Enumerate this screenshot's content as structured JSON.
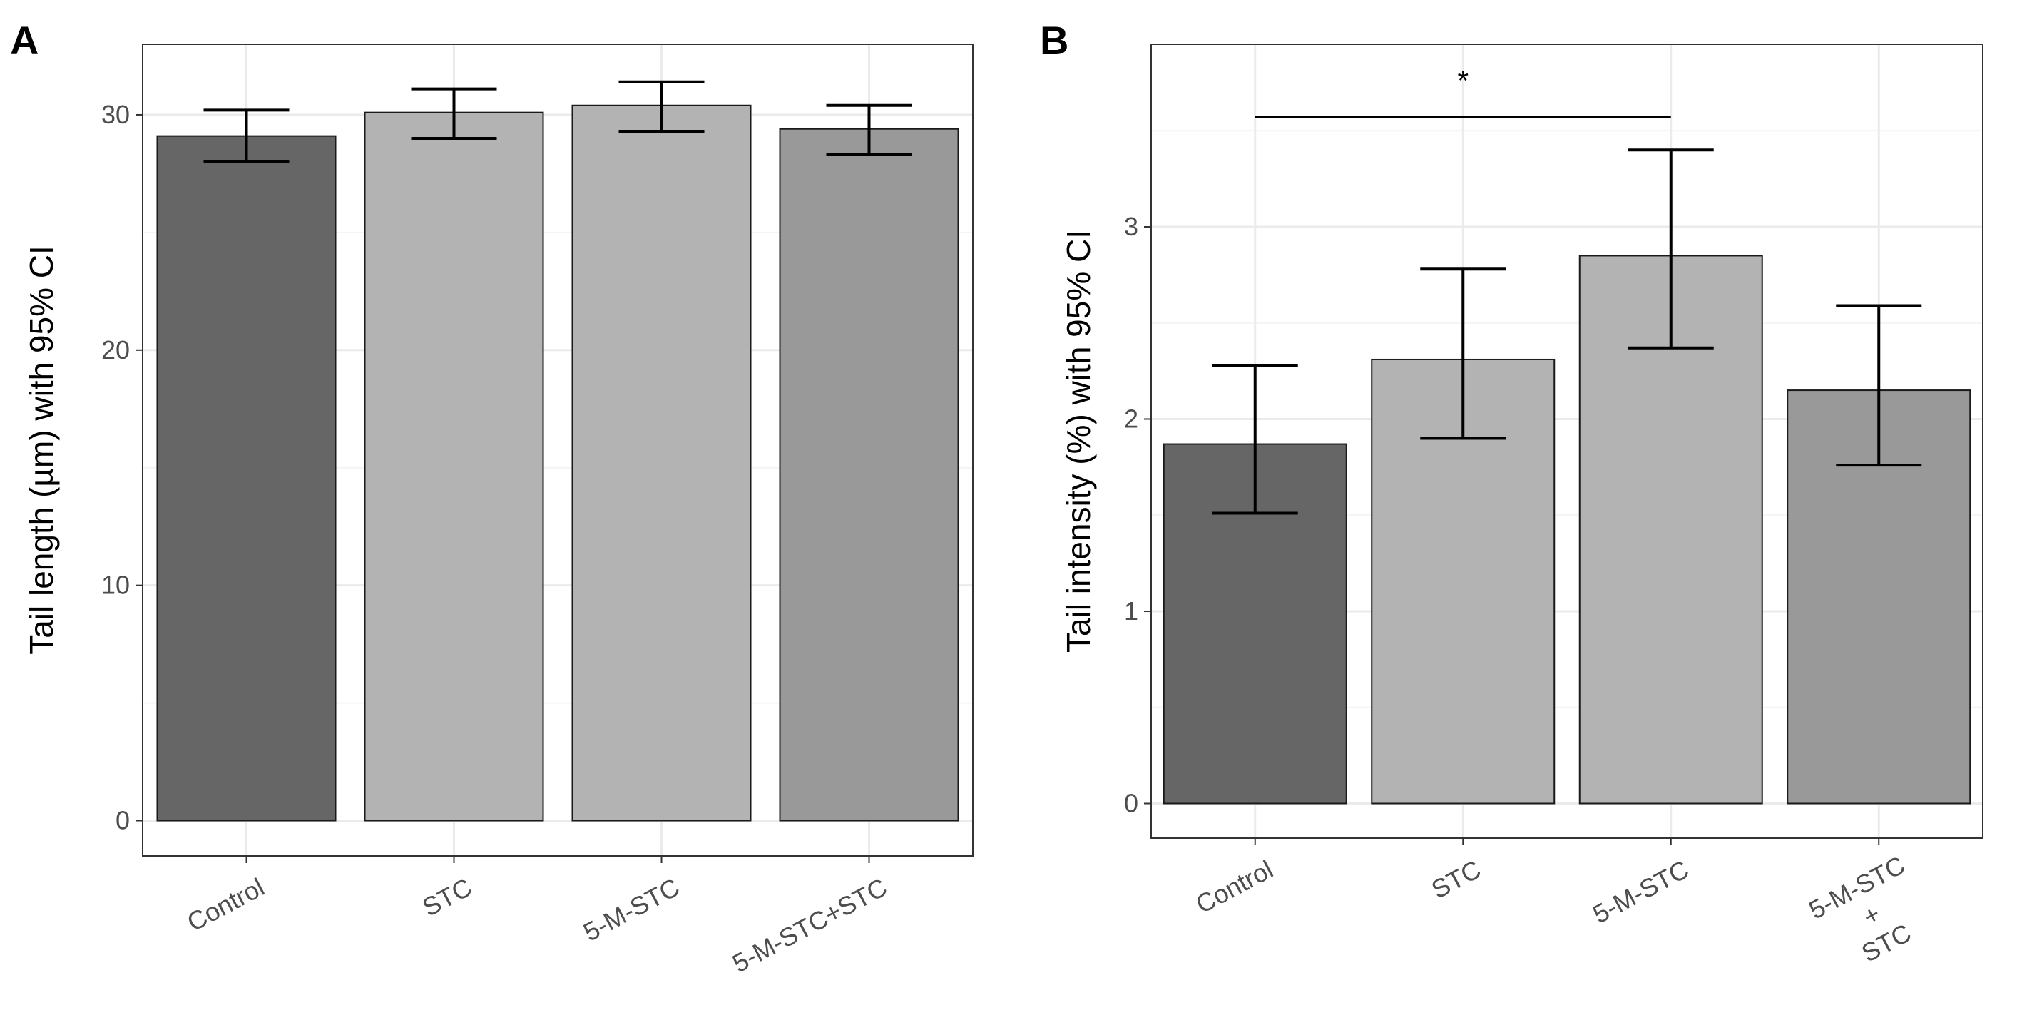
{
  "chart_data": [
    {
      "panel": "A",
      "type": "bar",
      "title": "",
      "xlabel": "",
      "ylabel": "Tail length (µm) with 95% CI",
      "categories": [
        "Control",
        "STC",
        "5-M-STC",
        "5-M-STC+STC"
      ],
      "values": [
        29.1,
        30.1,
        30.4,
        29.4
      ],
      "ci_lower": [
        28.0,
        29.0,
        29.3,
        28.3
      ],
      "ci_upper": [
        30.2,
        31.1,
        31.4,
        30.4
      ],
      "bar_colors": [
        "#666666",
        "#b3b3b3",
        "#b3b3b3",
        "#999999"
      ],
      "ylim": [
        -1.5,
        33
      ],
      "yticks": [
        0,
        10,
        20,
        30
      ],
      "grid": true,
      "legend": "none",
      "significance": []
    },
    {
      "panel": "B",
      "type": "bar",
      "title": "",
      "xlabel": "",
      "ylabel": "Tail intensity (%) with 95% CI",
      "categories": [
        "Control",
        "STC",
        "5-M-STC",
        "5-M-STC\n+\nSTC"
      ],
      "values": [
        1.87,
        2.31,
        2.85,
        2.15
      ],
      "ci_lower": [
        1.51,
        1.9,
        2.37,
        1.76
      ],
      "ci_upper": [
        2.28,
        2.78,
        3.4,
        2.59
      ],
      "bar_colors": [
        "#666666",
        "#b3b3b3",
        "#b3b3b3",
        "#999999"
      ],
      "ylim": [
        -0.18,
        3.95
      ],
      "yticks": [
        0,
        1,
        2,
        3
      ],
      "grid": true,
      "legend": "none",
      "significance": [
        {
          "from": 0,
          "to": 2,
          "y": 3.57,
          "label": "*"
        }
      ]
    }
  ]
}
